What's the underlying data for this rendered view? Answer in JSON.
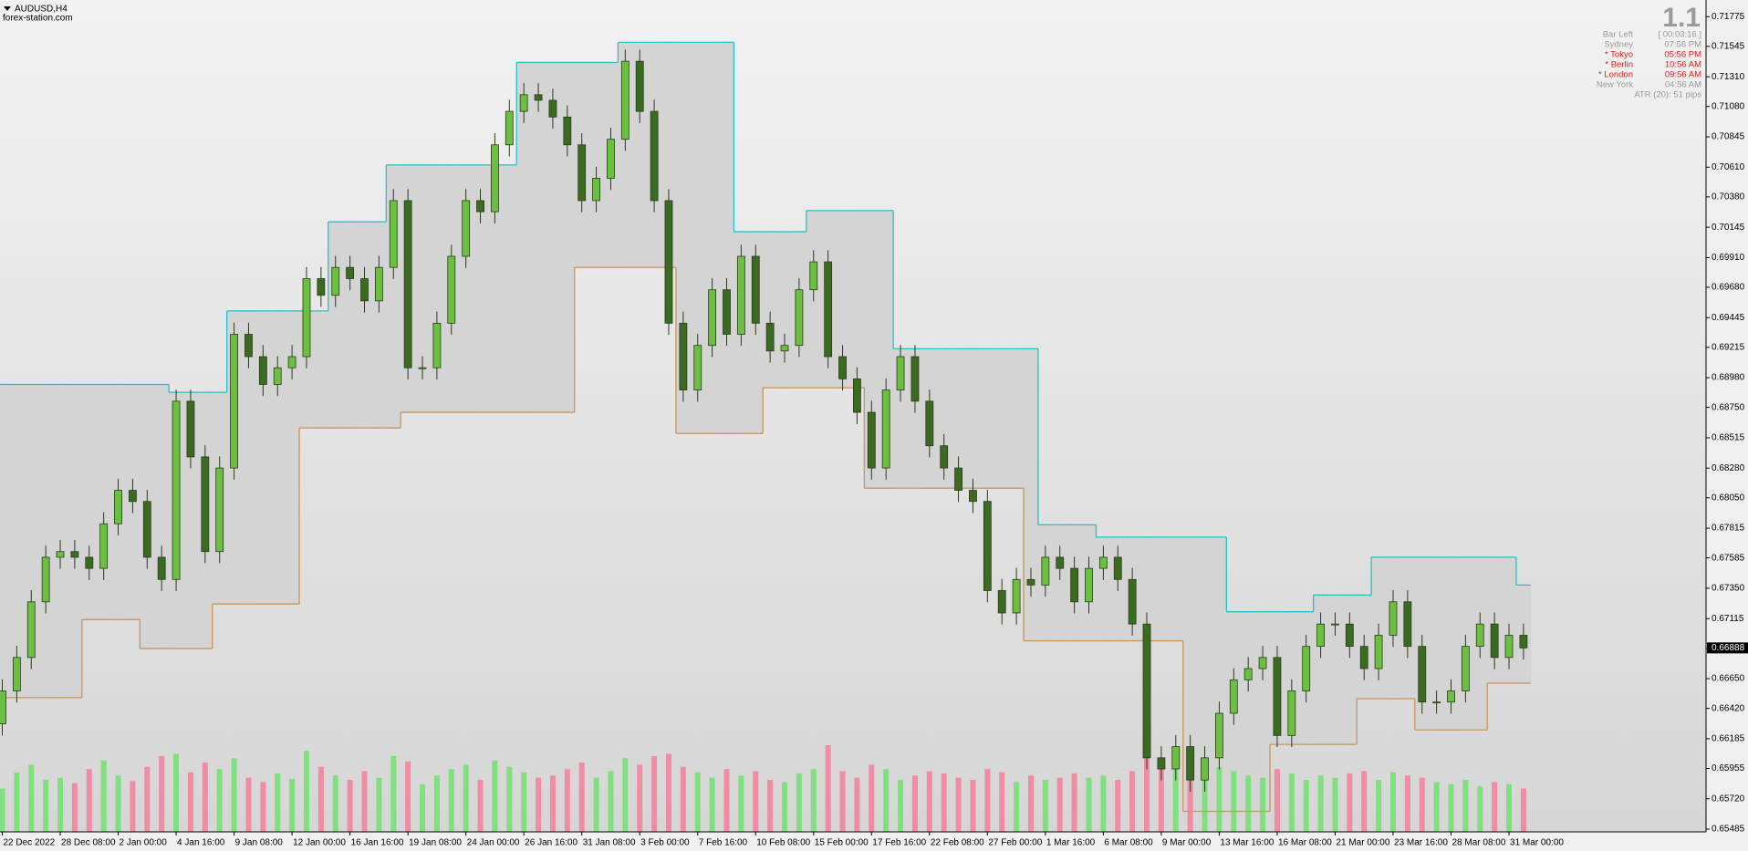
{
  "header": {
    "symbol": "AUDUSD,H4",
    "site": "forex-station.com"
  },
  "info": {
    "version": "1.1",
    "rows": [
      {
        "label": "Bar Left",
        "value": "[ 00:03:16 ]",
        "color": "#9a9a9a"
      },
      {
        "label": "Sydney",
        "value": "07:56 PM",
        "color": "#9a9a9a"
      },
      {
        "label": "* Tokyo",
        "value": "05:56 PM",
        "color": "#e02020"
      },
      {
        "label": "* Berlin",
        "value": "10:56 AM",
        "color": "#e02020"
      },
      {
        "label": "* London",
        "value": "09:56 AM",
        "color": "#e02020"
      },
      {
        "label": "New York",
        "value": "04:56 AM",
        "color": "#9a9a9a"
      }
    ],
    "atr": "ATR (20): 51 pips",
    "atr_color": "#9a9a9a"
  },
  "chart_data": {
    "type": "candlestick",
    "categories": [
      "22 Dec 2022",
      null,
      null,
      null,
      "28 Dec 08:00",
      null,
      null,
      null,
      "2 Jan 00:00",
      null,
      null,
      null,
      "4 Jan 16:00",
      null,
      null,
      null,
      "9 Jan 08:00",
      null,
      null,
      null,
      "12 Jan 00:00",
      null,
      null,
      null,
      "16 Jan 16:00",
      null,
      null,
      null,
      "19 Jan 08:00",
      null,
      null,
      null,
      "24 Jan 00:00",
      null,
      null,
      null,
      "26 Jan 16:00",
      null,
      null,
      null,
      "31 Jan 08:00",
      null,
      null,
      null,
      "3 Feb 00:00",
      null,
      null,
      null,
      "7 Feb 16:00",
      null,
      null,
      null,
      "10 Feb 08:00",
      null,
      null,
      null,
      "15 Feb 00:00",
      null,
      null,
      null,
      "17 Feb 16:00",
      null,
      null,
      null,
      "22 Feb 08:00",
      null,
      null,
      null,
      "27 Feb 00:00",
      null,
      null,
      null,
      "1 Mar 16:00",
      null,
      null,
      null,
      "6 Mar 08:00",
      null,
      null,
      null,
      "9 Mar 00:00",
      null,
      null,
      null,
      "13 Mar 16:00",
      null,
      null,
      null,
      "16 Mar 08:00",
      null,
      null,
      null,
      "21 Mar 00:00",
      null,
      null,
      null,
      "23 Mar 16:00",
      null,
      null,
      null,
      "28 Mar 08:00",
      null,
      null,
      null,
      "31 Mar 00:00",
      null
    ],
    "open": [
      0.663,
      0.66555,
      0.66814,
      0.67245,
      0.6759,
      0.67634,
      0.6759,
      0.67504,
      0.67849,
      0.68108,
      0.68022,
      0.6759,
      0.67418,
      0.68798,
      0.68367,
      0.67634,
      0.68281,
      0.69316,
      0.69143,
      0.68928,
      0.69057,
      0.69143,
      0.69747,
      0.69618,
      0.69834,
      0.69747,
      0.69575,
      0.69834,
      0.70351,
      0.69057,
      0.69057,
      0.69402,
      0.6992,
      0.70351,
      0.70265,
      0.70783,
      0.71042,
      0.71171,
      0.71128,
      0.70998,
      0.70783,
      0.70351,
      0.70524,
      0.70826,
      0.7143,
      0.71042,
      0.70351,
      0.69402,
      0.68885,
      0.6923,
      0.69661,
      0.69316,
      0.6992,
      0.69402,
      0.69187,
      0.6923,
      0.69661,
      0.69877,
      0.69143,
      0.68971,
      0.68712,
      0.68281,
      0.68885,
      0.69143,
      0.68798,
      0.68453,
      0.68281,
      0.68108,
      0.68022,
      0.67332,
      0.67159,
      0.67418,
      0.67375,
      0.6759,
      0.67504,
      0.67245,
      0.67504,
      0.6759,
      0.67418,
      0.67073,
      0.66037,
      0.65951,
      0.66124,
      0.65865,
      0.66037,
      0.66382,
      0.66641,
      0.66728,
      0.66814,
      0.6621,
      0.66555,
      0.669,
      0.67073,
      0.67073,
      0.669,
      0.66728,
      0.66986,
      0.67245,
      0.669,
      0.66469,
      0.66469,
      0.66555,
      0.669,
      0.67073,
      0.66814,
      0.66986
    ],
    "high": [
      0.66645,
      0.66904,
      0.67335,
      0.6768,
      0.67724,
      0.67724,
      0.6768,
      0.67939,
      0.68198,
      0.68198,
      0.68112,
      0.6768,
      0.68888,
      0.68888,
      0.68457,
      0.68371,
      0.69406,
      0.69406,
      0.69233,
      0.69147,
      0.69233,
      0.69837,
      0.69837,
      0.69924,
      0.69924,
      0.69837,
      0.69924,
      0.70441,
      0.70441,
      0.69147,
      0.69492,
      0.7001,
      0.70441,
      0.70441,
      0.70873,
      0.71132,
      0.71261,
      0.71261,
      0.71218,
      0.71088,
      0.70873,
      0.70614,
      0.70916,
      0.7152,
      0.7152,
      0.71132,
      0.70441,
      0.69492,
      0.6932,
      0.69751,
      0.69751,
      0.7001,
      0.7001,
      0.69492,
      0.6932,
      0.69751,
      0.69967,
      0.69967,
      0.69233,
      0.69061,
      0.68802,
      0.68975,
      0.69233,
      0.69233,
      0.68888,
      0.68543,
      0.68371,
      0.68198,
      0.68112,
      0.67422,
      0.67508,
      0.67508,
      0.6768,
      0.6768,
      0.67594,
      0.67594,
      0.6768,
      0.6768,
      0.67508,
      0.67163,
      0.66127,
      0.66214,
      0.66214,
      0.66127,
      0.66472,
      0.66731,
      0.66818,
      0.66904,
      0.66904,
      0.66645,
      0.6699,
      0.67163,
      0.67163,
      0.67163,
      0.6699,
      0.67076,
      0.67335,
      0.67335,
      0.6699,
      0.66559,
      0.66645,
      0.6699,
      0.67163,
      0.67163,
      0.67076,
      0.67076
    ],
    "low": [
      0.6621,
      0.66465,
      0.66724,
      0.67155,
      0.675,
      0.675,
      0.67414,
      0.67414,
      0.67759,
      0.67932,
      0.675,
      0.67328,
      0.67328,
      0.68277,
      0.67544,
      0.67544,
      0.68191,
      0.69053,
      0.68838,
      0.68838,
      0.68967,
      0.69053,
      0.69528,
      0.69528,
      0.69657,
      0.69485,
      0.69485,
      0.69744,
      0.68967,
      0.68967,
      0.68967,
      0.69312,
      0.6983,
      0.70175,
      0.70175,
      0.70693,
      0.70952,
      0.71038,
      0.70908,
      0.70693,
      0.70261,
      0.70261,
      0.70434,
      0.70736,
      0.70952,
      0.70261,
      0.69312,
      0.68795,
      0.68795,
      0.6914,
      0.69226,
      0.69226,
      0.69312,
      0.69097,
      0.69097,
      0.6914,
      0.69571,
      0.69053,
      0.68881,
      0.68622,
      0.68191,
      0.68191,
      0.68795,
      0.68708,
      0.68363,
      0.68191,
      0.68018,
      0.67932,
      0.67242,
      0.67069,
      0.67069,
      0.67285,
      0.67285,
      0.67414,
      0.67155,
      0.67155,
      0.67414,
      0.67328,
      0.66983,
      0.65947,
      0.65861,
      0.65861,
      0.65775,
      0.65775,
      0.65947,
      0.66292,
      0.66551,
      0.66638,
      0.6612,
      0.6612,
      0.66465,
      0.6681,
      0.66983,
      0.6681,
      0.66638,
      0.66638,
      0.66896,
      0.6681,
      0.66379,
      0.66379,
      0.66379,
      0.66465,
      0.6681,
      0.66724,
      0.66724,
      0.66798
    ],
    "close": [
      0.66555,
      0.66814,
      0.67245,
      0.6759,
      0.67634,
      0.6759,
      0.67504,
      0.67849,
      0.68108,
      0.68022,
      0.6759,
      0.67418,
      0.68798,
      0.68367,
      0.67634,
      0.68281,
      0.69316,
      0.69143,
      0.68928,
      0.69057,
      0.69143,
      0.69747,
      0.69618,
      0.69834,
      0.69747,
      0.69575,
      0.69834,
      0.70351,
      0.69057,
      0.69057,
      0.69402,
      0.6992,
      0.70351,
      0.70265,
      0.70783,
      0.71042,
      0.71171,
      0.71128,
      0.70998,
      0.70783,
      0.70351,
      0.70524,
      0.70826,
      0.7143,
      0.71042,
      0.70351,
      0.69402,
      0.68885,
      0.6923,
      0.69661,
      0.69316,
      0.6992,
      0.69402,
      0.69187,
      0.6923,
      0.69661,
      0.69877,
      0.69143,
      0.68971,
      0.68712,
      0.68281,
      0.68885,
      0.69143,
      0.68798,
      0.68453,
      0.68281,
      0.68108,
      0.68022,
      0.67332,
      0.67159,
      0.67418,
      0.67375,
      0.6759,
      0.67504,
      0.67245,
      0.67504,
      0.6759,
      0.67418,
      0.67073,
      0.66037,
      0.65951,
      0.66124,
      0.65865,
      0.66037,
      0.66382,
      0.66641,
      0.66728,
      0.66814,
      0.6621,
      0.66555,
      0.669,
      0.67073,
      0.67073,
      0.669,
      0.66728,
      0.66986,
      0.67245,
      0.669,
      0.66469,
      0.66469,
      0.66555,
      0.669,
      0.67073,
      0.66814,
      0.66986,
      0.66888
    ],
    "volume": [
      40,
      55,
      62,
      48,
      50,
      45,
      58,
      66,
      52,
      47,
      60,
      70,
      72,
      55,
      64,
      58,
      68,
      50,
      46,
      54,
      49,
      75,
      60,
      52,
      48,
      56,
      50,
      70,
      65,
      44,
      52,
      58,
      62,
      48,
      66,
      60,
      55,
      50,
      52,
      58,
      64,
      50,
      56,
      68,
      62,
      70,
      72,
      60,
      55,
      50,
      58,
      52,
      56,
      48,
      46,
      54,
      58,
      80,
      56,
      50,
      62,
      58,
      48,
      52,
      56,
      54,
      50,
      48,
      58,
      55,
      46,
      52,
      48,
      50,
      54,
      50,
      52,
      48,
      56,
      70,
      62,
      58,
      64,
      55,
      60,
      56,
      52,
      50,
      58,
      54,
      48,
      52,
      50,
      54,
      56,
      48,
      55,
      52,
      50,
      46,
      44,
      48,
      42,
      46,
      44,
      40
    ],
    "channel_upper": [
      0.68928,
      0.68928,
      0.68928,
      0.68928,
      0.68928,
      0.68928,
      0.68928,
      0.68928,
      0.68928,
      0.68928,
      0.68928,
      0.68928,
      0.68867,
      0.68867,
      0.68867,
      0.68867,
      0.69497,
      0.69497,
      0.69497,
      0.69497,
      0.69497,
      0.69497,
      0.69497,
      0.70187,
      0.70187,
      0.70187,
      0.70187,
      0.70627,
      0.70627,
      0.70627,
      0.70627,
      0.70627,
      0.70627,
      0.70627,
      0.70627,
      0.70627,
      0.71421,
      0.71421,
      0.71421,
      0.71421,
      0.71421,
      0.71421,
      0.71421,
      0.71577,
      0.71577,
      0.71577,
      0.71577,
      0.71577,
      0.71577,
      0.71577,
      0.71577,
      0.7011,
      0.7011,
      0.7011,
      0.7011,
      0.7011,
      0.70274,
      0.70274,
      0.70274,
      0.70274,
      0.70274,
      0.70274,
      0.69204,
      0.69204,
      0.69204,
      0.69204,
      0.69204,
      0.69204,
      0.69204,
      0.69204,
      0.69204,
      0.69204,
      0.67841,
      0.67841,
      0.67841,
      0.67841,
      0.67746,
      0.67746,
      0.67746,
      0.67746,
      0.67746,
      0.67746,
      0.67746,
      0.67746,
      0.67746,
      0.67168,
      0.67168,
      0.67168,
      0.67168,
      0.67168,
      0.67168,
      0.67297,
      0.67297,
      0.67297,
      0.67297,
      0.6759,
      0.6759,
      0.6759,
      0.6759,
      0.6759,
      0.6759,
      0.6759,
      0.6759,
      0.6759,
      0.6759,
      0.67375
    ],
    "channel_lower": [
      0.66503,
      0.66503,
      0.66503,
      0.66503,
      0.66503,
      0.66503,
      0.67107,
      0.67107,
      0.67107,
      0.67107,
      0.66883,
      0.66883,
      0.66883,
      0.66883,
      0.66883,
      0.67228,
      0.67228,
      0.67228,
      0.67228,
      0.67228,
      0.67228,
      0.68591,
      0.68591,
      0.68591,
      0.68591,
      0.68591,
      0.68591,
      0.68591,
      0.68712,
      0.68712,
      0.68712,
      0.68712,
      0.68712,
      0.68712,
      0.68712,
      0.68712,
      0.68712,
      0.68712,
      0.68712,
      0.68712,
      0.69834,
      0.69834,
      0.69834,
      0.69834,
      0.69834,
      0.69834,
      0.69834,
      0.68548,
      0.68548,
      0.68548,
      0.68548,
      0.68548,
      0.68548,
      0.68902,
      0.68902,
      0.68902,
      0.68902,
      0.68902,
      0.68902,
      0.68902,
      0.68125,
      0.68125,
      0.68125,
      0.68125,
      0.68125,
      0.68125,
      0.68125,
      0.68125,
      0.68125,
      0.68125,
      0.68125,
      0.66943,
      0.66943,
      0.66943,
      0.66943,
      0.66943,
      0.66943,
      0.66943,
      0.66943,
      0.66943,
      0.66943,
      0.66943,
      0.65623,
      0.65623,
      0.65623,
      0.65623,
      0.65623,
      0.65623,
      0.66141,
      0.66141,
      0.66141,
      0.66141,
      0.66141,
      0.66141,
      0.66495,
      0.66495,
      0.66495,
      0.66495,
      0.66253,
      0.66253,
      0.66253,
      0.66253,
      0.66253,
      0.66615,
      0.66615,
      0.66615
    ],
    "current_price": 0.66888,
    "colors": {
      "bull": "#6cc040",
      "bear": "#3a6b20",
      "wick": "#2b3a1c",
      "upper": "#2bbfc6",
      "lower": "#c9955a",
      "fill": "#d4d4d4",
      "volume_up": "#80e080",
      "volume_down": "#f08ca4"
    },
    "ylim": [
      0.65464,
      0.71876
    ],
    "yticks": [
      0.71775,
      0.71545,
      {
        "value": 0.7131,
        "label": "0.71310"
      },
      {
        "value": 0.7108,
        "label": "0.71080"
      },
      0.70845,
      {
        "value": 0.7061,
        "label": "0.70610"
      },
      {
        "value": 0.7038,
        "label": "0.70380"
      },
      0.70145,
      {
        "value": 0.6991,
        "label": "0.69910"
      },
      {
        "value": 0.6968,
        "label": "0.69680"
      },
      0.69445,
      0.69215,
      {
        "value": 0.6898,
        "label": "0.68980"
      },
      {
        "value": 0.6875,
        "label": "0.68750"
      },
      0.68515,
      {
        "value": 0.6828,
        "label": "0.68280"
      },
      {
        "value": 0.6805,
        "label": "0.68050"
      },
      0.67815,
      0.67585,
      {
        "value": 0.6735,
        "label": "0.67350"
      },
      0.67115,
      0.66885,
      {
        "value": 0.6665,
        "label": "0.66650"
      },
      {
        "value": 0.6642,
        "label": "0.66420"
      },
      0.66185,
      0.65955,
      {
        "value": 0.6572,
        "label": "0.65720"
      },
      0.65485
    ]
  }
}
